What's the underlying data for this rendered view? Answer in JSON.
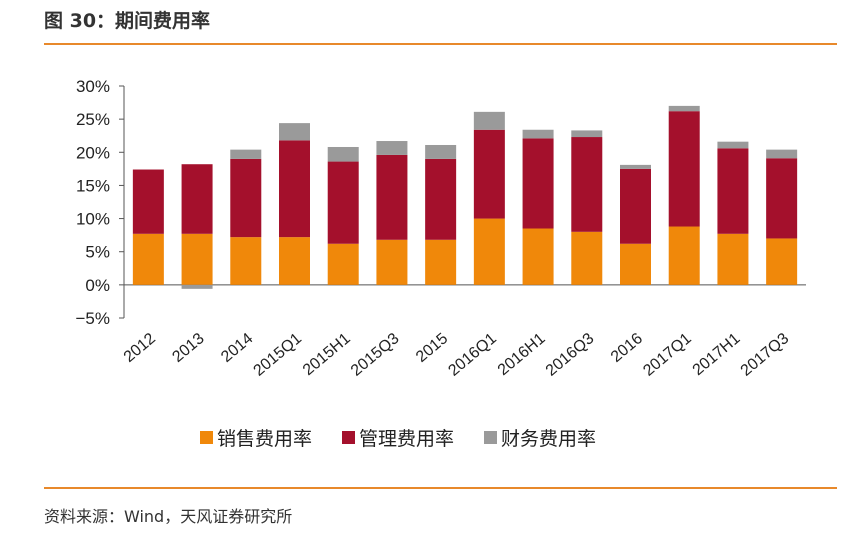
{
  "header": {
    "title": "图 30：期间费用率"
  },
  "footer": {
    "source": "资料来源：Wind，天风证券研究所"
  },
  "colors": {
    "accent": "#e8892b"
  },
  "chart_data": {
    "type": "bar",
    "stacked": true,
    "title": "期间费用率",
    "xlabel": "",
    "ylabel": "",
    "ylim": [
      -5,
      30
    ],
    "yticks": [
      -5,
      0,
      5,
      10,
      15,
      20,
      25,
      30
    ],
    "ytick_labels": [
      "−5%",
      "0%",
      "5%",
      "10%",
      "15%",
      "20%",
      "25%",
      "30%"
    ],
    "categories": [
      "2012",
      "2013",
      "2014",
      "2015Q1",
      "2015H1",
      "2015Q3",
      "2015",
      "2016Q1",
      "2016H1",
      "2016Q3",
      "2016",
      "2017Q1",
      "2017H1",
      "2017Q3"
    ],
    "series": [
      {
        "name": "销售费用率",
        "color": "#f0880a",
        "values": [
          7.7,
          7.7,
          7.2,
          7.2,
          6.2,
          6.8,
          6.8,
          10.0,
          8.5,
          8.0,
          6.2,
          8.8,
          7.7,
          7.0
        ]
      },
      {
        "name": "管理费用率",
        "color": "#a4102c",
        "values": [
          9.7,
          10.5,
          11.8,
          14.6,
          12.4,
          12.8,
          12.2,
          13.4,
          13.6,
          14.3,
          11.3,
          17.4,
          12.9,
          12.1
        ]
      },
      {
        "name": "财务费用率",
        "color": "#9a9a9a",
        "values": [
          0,
          -0.6,
          1.4,
          2.6,
          2.2,
          2.1,
          2.1,
          2.7,
          1.3,
          1.0,
          0.6,
          0.8,
          1.0,
          1.3
        ]
      }
    ],
    "legend_position": "bottom"
  }
}
